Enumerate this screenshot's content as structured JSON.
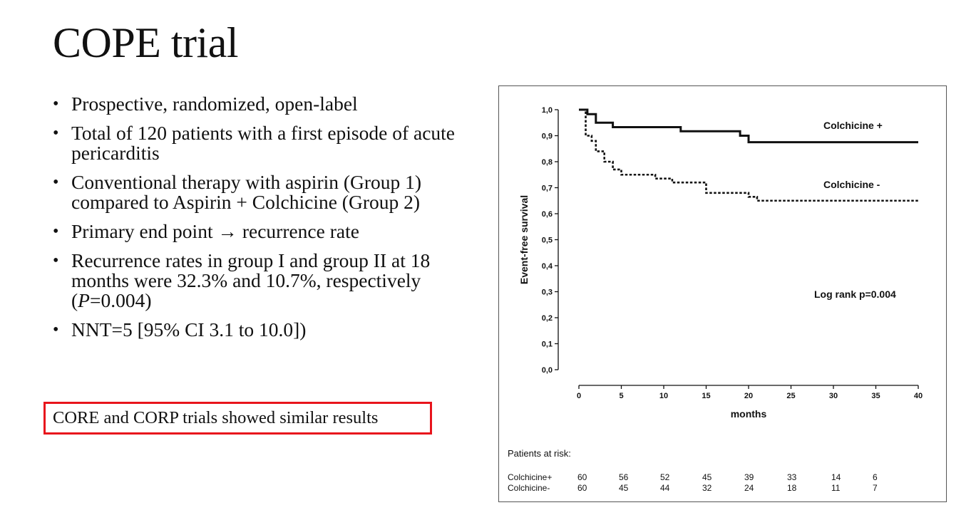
{
  "slide": {
    "title": "COPE trial",
    "bullets": [
      "Prospective, randomized, open-label",
      "Total of 120 patients with a first episode of acute pericarditis",
      "Conventional therapy with aspirin (Group 1) compared to Aspirin + Colchicine (Group 2)",
      {
        "pre": "Primary end point ",
        "arrow": "→",
        "post": " recurrence rate"
      },
      {
        "pre": "Recurrence rates in group I and group II at 18 months were 32.3% and 10.7%, respectively (",
        "italic": "P",
        "post": "=0.004)"
      },
      "NNT=5 [95% CI 3.1 to 10.0])"
    ],
    "callout": "CORE and CORP trials showed similar results"
  },
  "chart_data": {
    "type": "line",
    "subtype": "kaplan-meier step",
    "xlabel": "months",
    "ylabel": "Event-free survival",
    "xlim": [
      0,
      40
    ],
    "ylim": [
      0,
      1
    ],
    "x_ticks": [
      0,
      5,
      10,
      15,
      20,
      25,
      30,
      35,
      40
    ],
    "y_ticks": [
      "0,0",
      "0,1",
      "0,2",
      "0,3",
      "0,4",
      "0,5",
      "0,6",
      "0,7",
      "0,8",
      "0,9",
      "1,0"
    ],
    "annotation": "Log rank p=0.004",
    "series": [
      {
        "name": "Colchicine +",
        "style": "solid",
        "color": "#111111",
        "x": [
          0,
          1,
          2,
          4,
          12,
          19,
          20,
          40
        ],
        "y": [
          1.0,
          0.983,
          0.95,
          0.933,
          0.917,
          0.9,
          0.875,
          0.875
        ]
      },
      {
        "name": "Colchicine -",
        "style": "dashed",
        "color": "#111111",
        "x": [
          0,
          0.8,
          1.5,
          2,
          3,
          4,
          5,
          9,
          11,
          15,
          20,
          21,
          40
        ],
        "y": [
          1.0,
          0.9,
          0.88,
          0.84,
          0.8,
          0.77,
          0.75,
          0.735,
          0.72,
          0.68,
          0.665,
          0.65,
          0.65
        ]
      }
    ],
    "at_risk": {
      "header": "Patients at risk:",
      "rows": [
        {
          "label": "Colchicine+",
          "values": [
            60,
            56,
            52,
            45,
            39,
            33,
            14,
            6
          ]
        },
        {
          "label": "Colchicine-",
          "values": [
            60,
            45,
            44,
            32,
            24,
            18,
            11,
            7
          ]
        }
      ]
    }
  }
}
